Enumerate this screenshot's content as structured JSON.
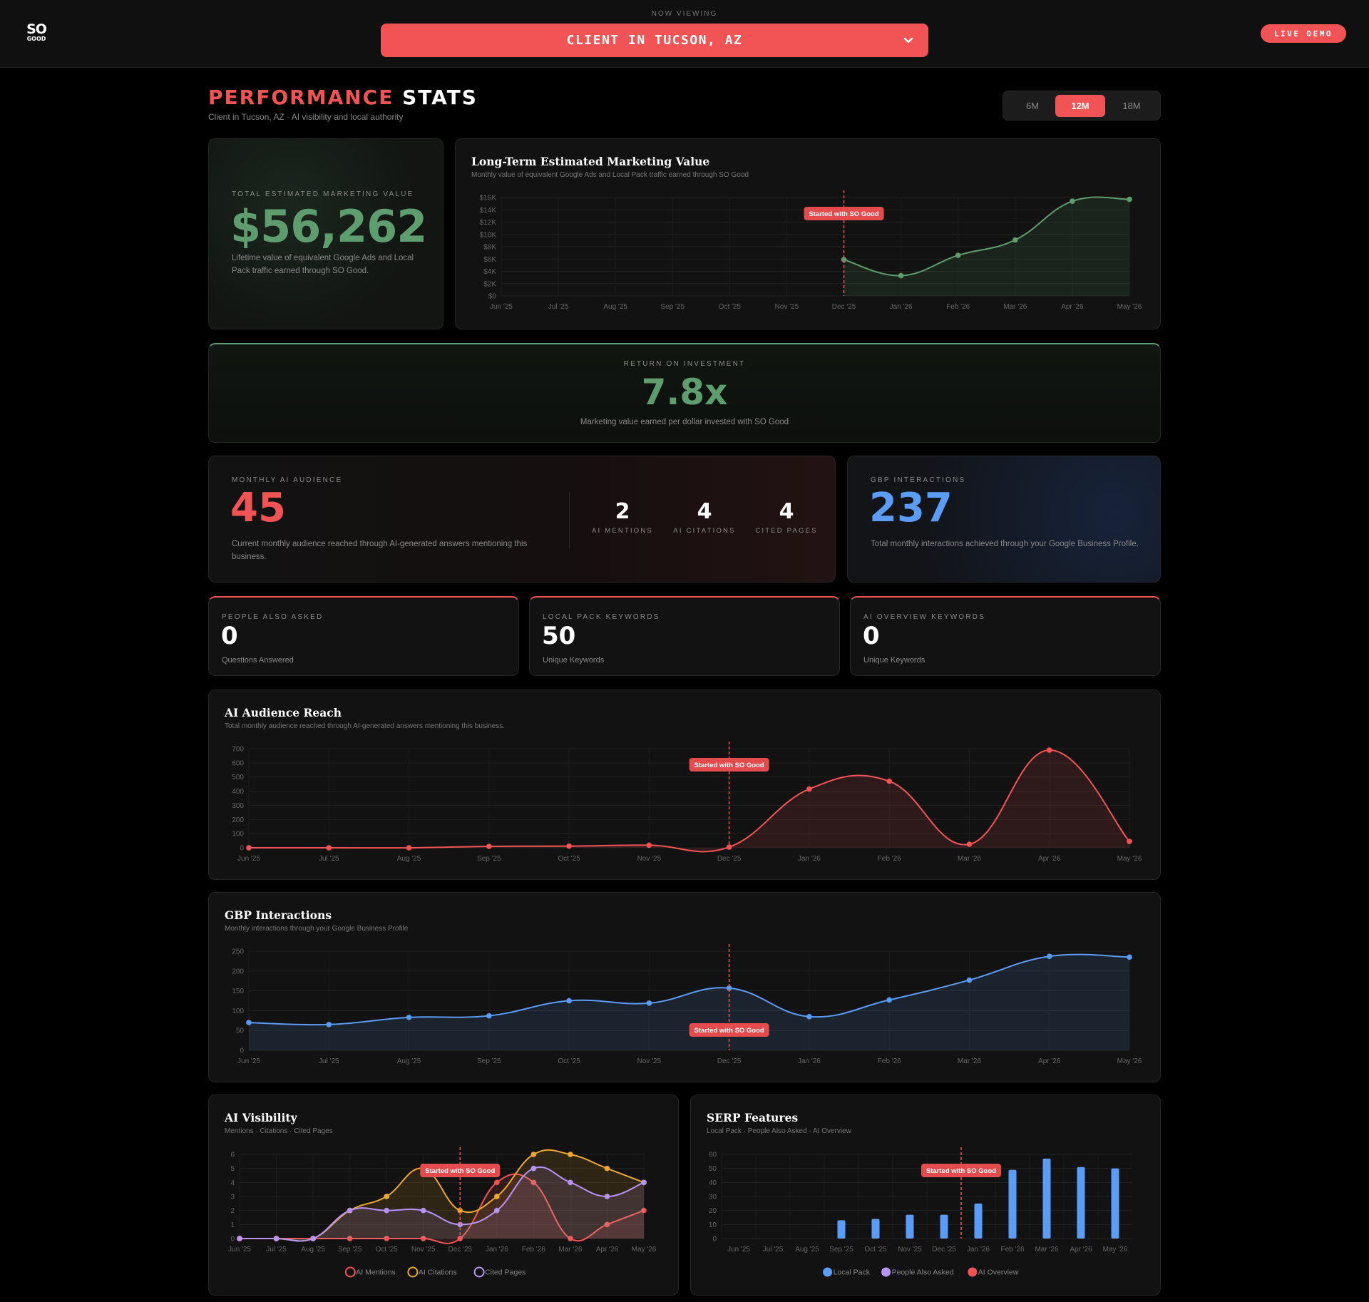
{
  "topbar": {
    "logo_top": "SO",
    "logo_bottom": "GOOD",
    "now_viewing": "NOW VIEWING",
    "client": "CLIENT IN TUCSON, AZ",
    "live_demo": "LIVE DEMO"
  },
  "header": {
    "title_accent": "PERFORMANCE",
    "title_rest": "STATS",
    "subtitle": "Client in Tucson, AZ · AI visibility and local authority",
    "ranges": [
      "6M",
      "12M",
      "18M"
    ],
    "active_range": "12M"
  },
  "colors": {
    "accent": "#f25455",
    "green": "#5e9e6e",
    "blue": "#5b9cf6",
    "orange": "#f0a830",
    "purple": "#b794f6"
  },
  "total_value": {
    "label": "TOTAL ESTIMATED MARKETING VALUE",
    "value": "$56,262",
    "desc": "Lifetime value of equivalent Google Ads and Local Pack traffic earned through SO Good."
  },
  "roi": {
    "label": "RETURN ON INVESTMENT",
    "value": "7.8x",
    "desc": "Marketing value earned per dollar invested with SO Good"
  },
  "ai_audience": {
    "label": "MONTHLY AI AUDIENCE",
    "value": "45",
    "desc": "Current monthly audience reached through AI-generated answers mentioning this business.",
    "stats": [
      {
        "value": "2",
        "label": "AI MENTIONS"
      },
      {
        "value": "4",
        "label": "AI CITATIONS"
      },
      {
        "value": "4",
        "label": "CITED PAGES"
      }
    ]
  },
  "gbp": {
    "label": "GBP INTERACTIONS",
    "value": "237",
    "desc": "Total monthly interactions achieved through your Google Business Profile."
  },
  "small_stats": [
    {
      "label": "PEOPLE ALSO ASKED",
      "value": "0",
      "sub": "Questions Answered"
    },
    {
      "label": "LOCAL PACK KEYWORDS",
      "value": "50",
      "sub": "Unique Keywords"
    },
    {
      "label": "AI OVERVIEW KEYWORDS",
      "value": "0",
      "sub": "Unique Keywords"
    }
  ],
  "chart_titles": {
    "value": {
      "title": "Long-Term Estimated Marketing Value",
      "sub": "Monthly value of equivalent Google Ads and Local Pack traffic earned through SO Good"
    },
    "reach": {
      "title": "AI Audience Reach",
      "sub": "Total monthly audience reached through AI-generated answers mentioning this business."
    },
    "gbp": {
      "title": "GBP Interactions",
      "sub": "Monthly interactions through your Google Business Profile"
    },
    "vis": {
      "title": "AI Visibility",
      "sub": "Mentions · Citations · Cited Pages"
    },
    "serp": {
      "title": "SERP Features",
      "sub": "Local Pack · People Also Asked · AI Overview"
    }
  },
  "chart_data": [
    {
      "id": "value",
      "type": "area",
      "categories": [
        "Jun '25",
        "Jul '25",
        "Aug '25",
        "Sep '25",
        "Oct '25",
        "Nov '25",
        "Dec '25",
        "Jan '26",
        "Feb '26",
        "Mar '26",
        "Apr '26",
        "May '26"
      ],
      "yticks": [
        0,
        2000,
        4000,
        6000,
        8000,
        10000,
        12000,
        14000,
        16000
      ],
      "ytick_labels": [
        "$0",
        "$2K",
        "$4K",
        "$6K",
        "$8K",
        "$10K",
        "$12K",
        "$14K",
        "$16K"
      ],
      "ylim": [
        0,
        16000
      ],
      "series": [
        {
          "values": [
            null,
            null,
            null,
            null,
            null,
            null,
            5900,
            3300,
            6600,
            9100,
            15400,
            15700
          ],
          "color": "#5e9e6e"
        }
      ],
      "annotation": {
        "label": "Started with SO Good",
        "at": "Dec '25"
      },
      "grid": true
    },
    {
      "id": "reach",
      "type": "area",
      "categories": [
        "Jun '25",
        "Jul '25",
        "Aug '25",
        "Sep '25",
        "Oct '25",
        "Nov '25",
        "Dec '25",
        "Jan '26",
        "Feb '26",
        "Mar '26",
        "Apr '26",
        "May '26"
      ],
      "yticks": [
        0,
        100,
        200,
        300,
        400,
        500,
        600,
        700
      ],
      "ytick_labels": [
        "0",
        "100",
        "200",
        "300",
        "400",
        "500",
        "600",
        "700"
      ],
      "ylim": [
        0,
        700
      ],
      "series": [
        {
          "values": [
            0,
            0,
            0,
            10,
            12,
            18,
            5,
            415,
            470,
            25,
            690,
            45
          ],
          "color": "#f25455"
        }
      ],
      "annotation": {
        "label": "Started with SO Good",
        "at": "Dec '25"
      },
      "grid": true
    },
    {
      "id": "gbp",
      "type": "area",
      "categories": [
        "Jun '25",
        "Jul '25",
        "Aug '25",
        "Sep '25",
        "Oct '25",
        "Nov '25",
        "Dec '25",
        "Jan '26",
        "Feb '26",
        "Mar '26",
        "Apr '26",
        "May '26"
      ],
      "yticks": [
        0,
        50,
        100,
        150,
        200,
        250
      ],
      "ytick_labels": [
        "0",
        "50",
        "100",
        "150",
        "200",
        "250"
      ],
      "ylim": [
        0,
        250
      ],
      "series": [
        {
          "values": [
            70,
            65,
            83,
            87,
            125,
            119,
            157,
            85,
            127,
            177,
            237,
            235
          ],
          "color": "#5b9cf6"
        }
      ],
      "annotation": {
        "label": "Started with SO Good",
        "at": "Dec '25",
        "position": "bottom"
      },
      "grid": true
    },
    {
      "id": "vis",
      "type": "line",
      "categories": [
        "Jun '25",
        "Jul '25",
        "Aug '25",
        "Sep '25",
        "Oct '25",
        "Nov '25",
        "Dec '25",
        "Jan '26",
        "Feb '26",
        "Mar '26",
        "Apr '26",
        "May '26"
      ],
      "yticks": [
        0,
        1,
        2,
        3,
        4,
        5,
        6
      ],
      "ytick_labels": [
        "0",
        "1",
        "2",
        "3",
        "4",
        "5",
        "6"
      ],
      "ylim": [
        0,
        6
      ],
      "series": [
        {
          "name": "AI Mentions",
          "values": [
            0,
            0,
            0,
            0,
            0,
            0,
            0,
            4,
            4,
            0,
            1,
            2
          ],
          "color": "#f25455"
        },
        {
          "name": "AI Citations",
          "values": [
            0,
            0,
            0,
            2,
            3,
            5,
            2,
            3,
            6,
            6,
            5,
            4
          ],
          "color": "#f0a830"
        },
        {
          "name": "Cited Pages",
          "values": [
            0,
            0,
            0,
            2,
            2,
            2,
            1,
            2,
            5,
            4,
            3,
            4
          ],
          "color": "#b794f6"
        }
      ],
      "legend": "bottom",
      "annotation": {
        "label": "Started with SO Good",
        "at": "Dec '25"
      },
      "grid": true
    },
    {
      "id": "serp",
      "type": "bar",
      "categories": [
        "Jun '25",
        "Jul '25",
        "Aug '25",
        "Sep '25",
        "Oct '25",
        "Nov '25",
        "Dec '25",
        "Jan '26",
        "Feb '26",
        "Mar '26",
        "Apr '26",
        "May '26"
      ],
      "yticks": [
        0,
        10,
        20,
        30,
        40,
        50,
        60
      ],
      "ytick_labels": [
        "0",
        "10",
        "20",
        "30",
        "40",
        "50",
        "60"
      ],
      "ylim": [
        0,
        60
      ],
      "series": [
        {
          "name": "Local Pack",
          "values": [
            0,
            0,
            0,
            13,
            14,
            17,
            17,
            25,
            49,
            57,
            51,
            50
          ],
          "color": "#5b9cf6"
        },
        {
          "name": "People Also Asked",
          "values": [
            0,
            0,
            0,
            0,
            0,
            0,
            0,
            0,
            0,
            0,
            0,
            0
          ],
          "color": "#b794f6"
        },
        {
          "name": "AI Overview",
          "values": [
            0,
            0,
            0,
            0,
            0,
            0,
            0,
            0,
            0,
            0,
            0,
            0
          ],
          "color": "#f25455"
        }
      ],
      "legend": "bottom",
      "annotation": {
        "label": "Started with SO Good",
        "at": "Dec '25"
      },
      "grid": true
    }
  ]
}
